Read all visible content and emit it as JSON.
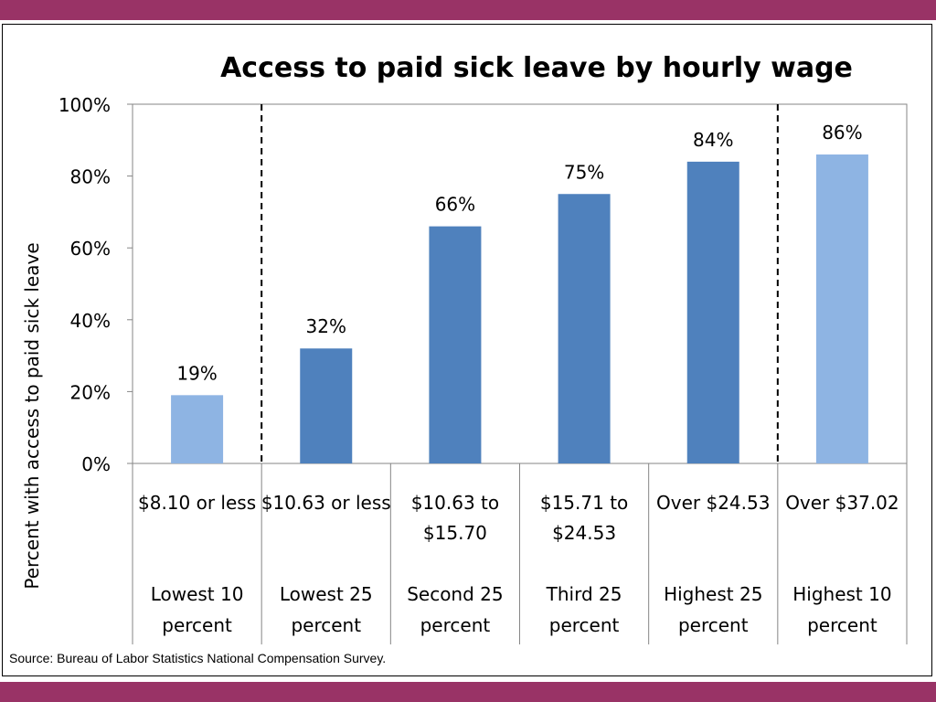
{
  "page": {
    "band_color": "#993366",
    "source": "Source: Bureau of Labor Statistics National Compensation Survey."
  },
  "chart_data": {
    "type": "bar",
    "title": "Access to paid sick leave by hourly wage",
    "ylabel": "Percent with access to paid sick leave",
    "xlabel": "",
    "ylim": [
      0,
      100
    ],
    "yticks": [
      0,
      20,
      40,
      60,
      80,
      100
    ],
    "ytick_labels": [
      "0%",
      "20%",
      "40%",
      "60%",
      "80%",
      "100%"
    ],
    "grid": false,
    "categories": [
      {
        "wage": "$8.10 or less",
        "group": "Lowest 10 percent",
        "value": 19,
        "label": "19%",
        "color": "#8EB4E3"
      },
      {
        "wage": "$10.63 or less",
        "group": "Lowest 25 percent",
        "value": 32,
        "label": "32%",
        "color": "#4F81BD"
      },
      {
        "wage": "$10.63 to $15.70",
        "group": "Second 25 percent",
        "value": 66,
        "label": "66%",
        "color": "#4F81BD"
      },
      {
        "wage": "$15.71 to $24.53",
        "group": "Third 25 percent",
        "value": 75,
        "label": "75%",
        "color": "#4F81BD"
      },
      {
        "wage": "Over $24.53",
        "group": "Highest 25 percent",
        "value": 84,
        "label": "84%",
        "color": "#4F81BD"
      },
      {
        "wage": "Over $37.02",
        "group": "Highest 10 percent",
        "value": 86,
        "label": "86%",
        "color": "#8EB4E3"
      }
    ],
    "dashed_separators_after": [
      0,
      4
    ]
  }
}
